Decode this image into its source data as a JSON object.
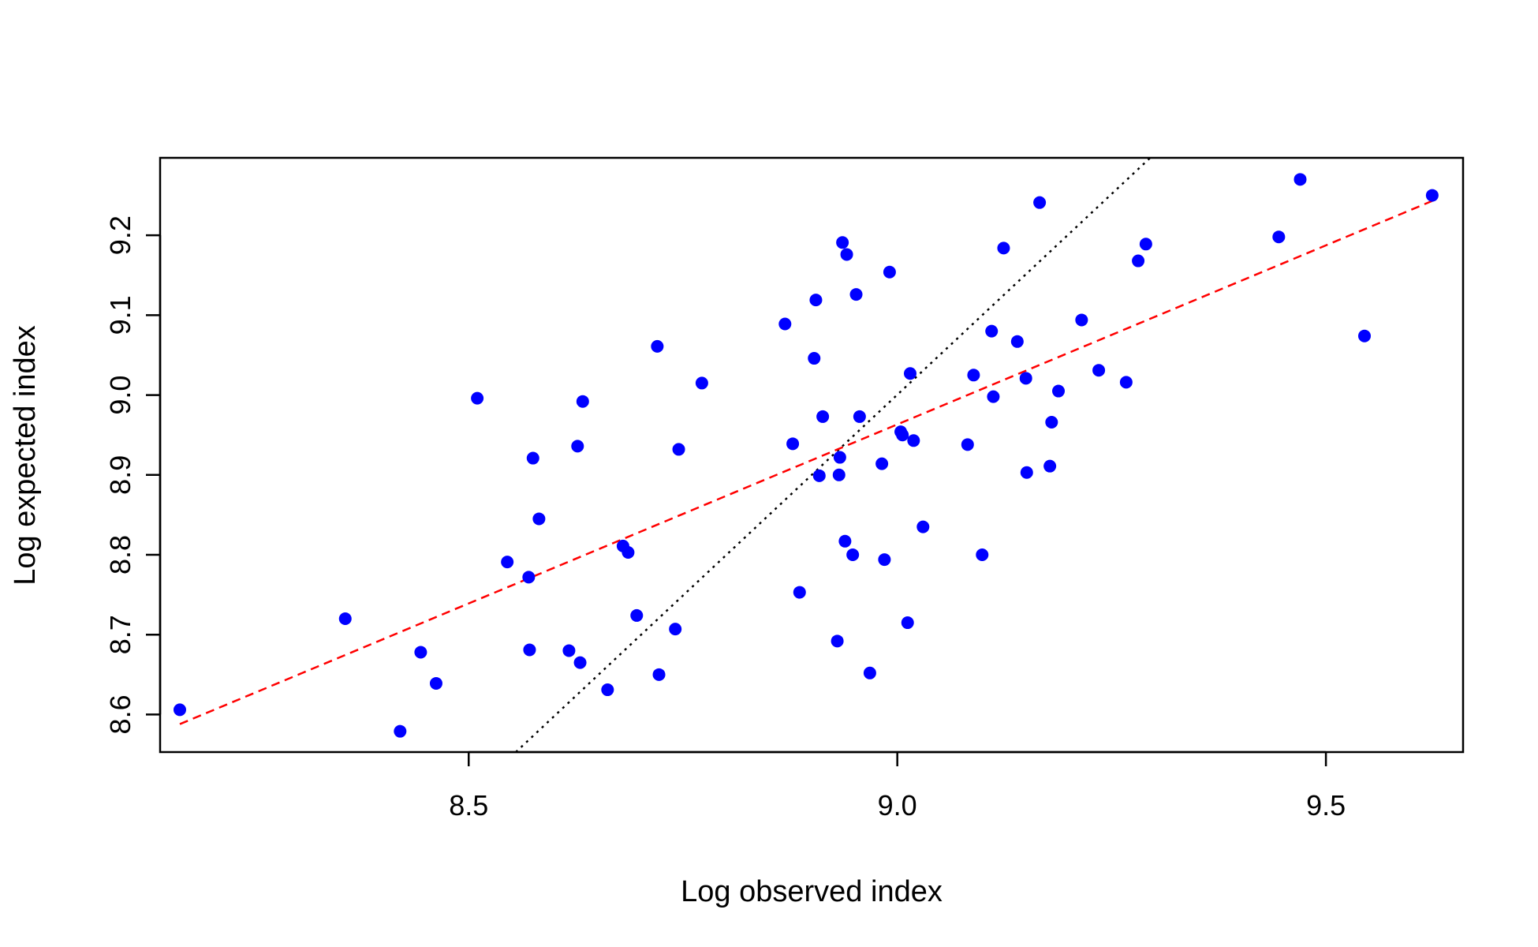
{
  "chart_data": {
    "type": "scatter",
    "xlabel": "Log observed index",
    "ylabel": "Log expected index",
    "xlim": [
      8.14,
      9.66
    ],
    "ylim": [
      8.553,
      9.297
    ],
    "xticks": [
      8.5,
      9.0,
      9.5
    ],
    "xtick_labels": [
      "8.5",
      "9.0",
      "9.5"
    ],
    "yticks": [
      8.6,
      8.7,
      8.8,
      8.9,
      9.0,
      9.1,
      9.2
    ],
    "ytick_labels": [
      "8.6",
      "8.7",
      "8.8",
      "8.9",
      "9.0",
      "9.1",
      "9.2"
    ],
    "grid": false,
    "legend": "none",
    "point_color": "#0000ff",
    "points": [
      [
        8.163,
        8.606
      ],
      [
        8.356,
        8.72
      ],
      [
        8.42,
        8.579
      ],
      [
        8.444,
        8.678
      ],
      [
        8.462,
        8.639
      ],
      [
        8.51,
        8.996
      ],
      [
        8.545,
        8.791
      ],
      [
        8.57,
        8.772
      ],
      [
        8.571,
        8.681
      ],
      [
        8.575,
        8.921
      ],
      [
        8.582,
        8.845
      ],
      [
        8.617,
        8.68
      ],
      [
        8.627,
        8.936
      ],
      [
        8.63,
        8.665
      ],
      [
        8.633,
        8.992
      ],
      [
        8.662,
        8.631
      ],
      [
        8.68,
        8.811
      ],
      [
        8.686,
        8.803
      ],
      [
        8.696,
        8.724
      ],
      [
        8.72,
        9.061
      ],
      [
        8.722,
        8.65
      ],
      [
        8.741,
        8.707
      ],
      [
        8.745,
        8.932
      ],
      [
        8.772,
        9.015
      ],
      [
        8.869,
        9.089
      ],
      [
        8.878,
        8.939
      ],
      [
        8.886,
        8.753
      ],
      [
        8.903,
        9.046
      ],
      [
        8.905,
        9.119
      ],
      [
        8.909,
        8.899
      ],
      [
        8.913,
        8.973
      ],
      [
        8.93,
        8.692
      ],
      [
        8.932,
        8.9
      ],
      [
        8.933,
        8.922
      ],
      [
        8.936,
        9.191
      ],
      [
        8.939,
        8.817
      ],
      [
        8.941,
        9.176
      ],
      [
        8.948,
        8.8
      ],
      [
        8.952,
        9.126
      ],
      [
        8.956,
        8.973
      ],
      [
        8.968,
        8.652
      ],
      [
        8.982,
        8.914
      ],
      [
        8.985,
        8.794
      ],
      [
        8.991,
        9.154
      ],
      [
        9.004,
        8.954
      ],
      [
        9.006,
        8.95
      ],
      [
        9.012,
        8.715
      ],
      [
        9.015,
        9.027
      ],
      [
        9.019,
        8.943
      ],
      [
        9.03,
        8.835
      ],
      [
        9.082,
        8.938
      ],
      [
        9.089,
        9.025
      ],
      [
        9.099,
        8.8
      ],
      [
        9.11,
        9.08
      ],
      [
        9.112,
        8.998
      ],
      [
        9.124,
        9.184
      ],
      [
        9.14,
        9.067
      ],
      [
        9.15,
        9.021
      ],
      [
        9.151,
        8.903
      ],
      [
        9.166,
        9.241
      ],
      [
        9.178,
        8.911
      ],
      [
        9.18,
        8.966
      ],
      [
        9.188,
        9.005
      ],
      [
        9.215,
        9.094
      ],
      [
        9.235,
        9.031
      ],
      [
        9.267,
        9.016
      ],
      [
        9.281,
        9.168
      ],
      [
        9.29,
        9.189
      ],
      [
        9.445,
        9.198
      ],
      [
        9.47,
        9.27
      ],
      [
        9.545,
        9.074
      ],
      [
        9.624,
        9.25
      ]
    ],
    "lines": [
      {
        "style": "dotted",
        "color": "#000000",
        "from": [
          8.555,
          8.553
        ],
        "to": [
          9.295,
          9.297
        ]
      },
      {
        "style": "dashed",
        "color": "#ff0000",
        "from": [
          8.163,
          8.588
        ],
        "to": [
          9.624,
          9.243
        ]
      }
    ]
  }
}
